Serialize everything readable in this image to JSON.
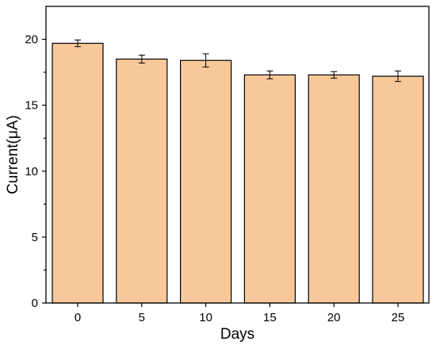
{
  "chart_data": {
    "type": "bar",
    "categories": [
      "0",
      "5",
      "10",
      "15",
      "20",
      "25"
    ],
    "values": [
      19.7,
      18.5,
      18.4,
      17.3,
      17.3,
      17.2
    ],
    "errors": [
      0.25,
      0.3,
      0.5,
      0.3,
      0.25,
      0.4
    ],
    "xlabel": "Days",
    "ylabel": "Current(μA)",
    "ylim": [
      0,
      22.5
    ],
    "yticks": [
      0,
      5,
      10,
      15,
      20
    ],
    "bar_color": "#F9C89A",
    "grid": false,
    "legend": "none"
  }
}
